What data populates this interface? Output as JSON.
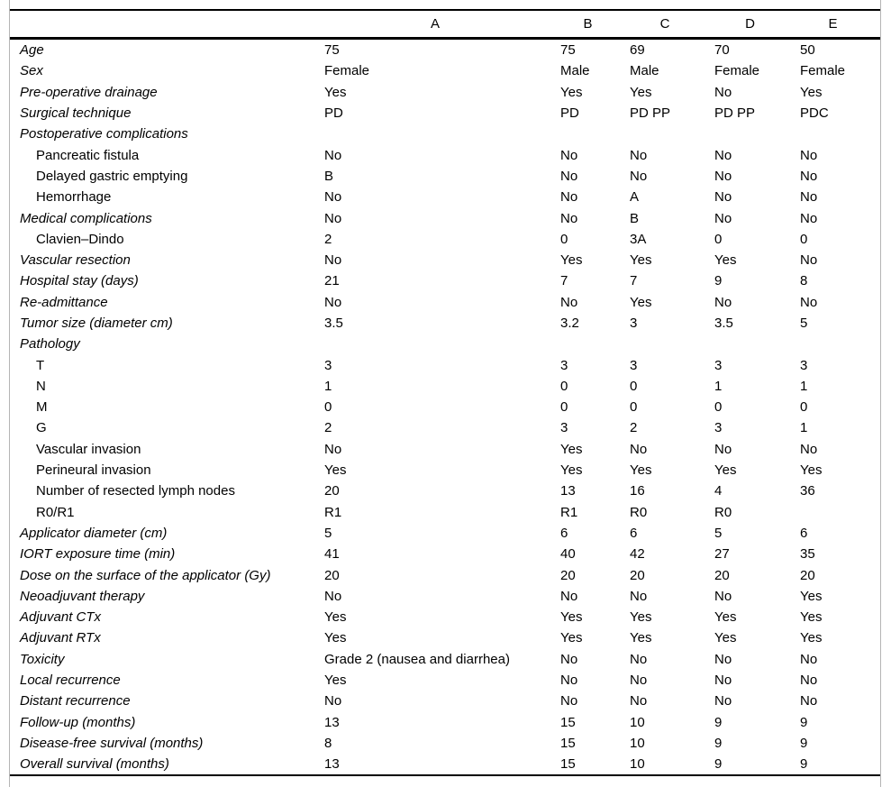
{
  "table": {
    "columns": [
      "A",
      "B",
      "C",
      "D",
      "E"
    ],
    "rows": [
      {
        "label": "Age",
        "style": "main",
        "values": [
          "75",
          "75",
          "69",
          "70",
          "50"
        ]
      },
      {
        "label": "Sex",
        "style": "main",
        "values": [
          "Female",
          "Male",
          "Male",
          "Female",
          "Female"
        ]
      },
      {
        "label": "Pre-operative drainage",
        "style": "main",
        "values": [
          "Yes",
          "Yes",
          "Yes",
          "No",
          "Yes"
        ]
      },
      {
        "label": "Surgical technique",
        "style": "main",
        "values": [
          "PD",
          "PD",
          "PD PP",
          "PD PP",
          "PDC"
        ]
      },
      {
        "label": "Postoperative complications",
        "style": "main",
        "values": [
          "",
          "",
          "",
          "",
          ""
        ]
      },
      {
        "label": "Pancreatic fistula",
        "style": "sub",
        "values": [
          "No",
          "No",
          "No",
          "No",
          "No"
        ]
      },
      {
        "label": "Delayed gastric emptying",
        "style": "sub",
        "values": [
          "B",
          "No",
          "No",
          "No",
          "No"
        ]
      },
      {
        "label": "Hemorrhage",
        "style": "sub",
        "values": [
          "No",
          "No",
          "A",
          "No",
          "No"
        ]
      },
      {
        "label": "Medical complications",
        "style": "main",
        "values": [
          "No",
          "No",
          "B",
          "No",
          "No"
        ]
      },
      {
        "label": "Clavien–Dindo",
        "style": "sub",
        "values": [
          "2",
          "0",
          "3A",
          "0",
          "0"
        ]
      },
      {
        "label": "Vascular resection",
        "style": "main",
        "values": [
          "No",
          "Yes",
          "Yes",
          "Yes",
          "No"
        ]
      },
      {
        "label": "Hospital stay (days)",
        "style": "main",
        "values": [
          "21",
          "7",
          "7",
          "9",
          "8"
        ]
      },
      {
        "label": "Re-admittance",
        "style": "main",
        "values": [
          "No",
          "No",
          "Yes",
          "No",
          "No"
        ]
      },
      {
        "label": "Tumor size (diameter cm)",
        "style": "main",
        "values": [
          "3.5",
          "3.2",
          "3",
          "3.5",
          "5"
        ]
      },
      {
        "label": "Pathology",
        "style": "main",
        "values": [
          "",
          "",
          "",
          "",
          ""
        ]
      },
      {
        "label": "T",
        "style": "sub",
        "values": [
          "3",
          "3",
          "3",
          "3",
          "3"
        ]
      },
      {
        "label": "N",
        "style": "sub",
        "values": [
          "1",
          "0",
          "0",
          "1",
          "1"
        ]
      },
      {
        "label": "M",
        "style": "sub",
        "values": [
          "0",
          "0",
          "0",
          "0",
          "0"
        ]
      },
      {
        "label": "G",
        "style": "sub",
        "values": [
          "2",
          "3",
          "2",
          "3",
          "1"
        ]
      },
      {
        "label": "Vascular invasion",
        "style": "sub",
        "values": [
          "No",
          "Yes",
          "No",
          "No",
          "No"
        ]
      },
      {
        "label": "Perineural invasion",
        "style": "sub",
        "values": [
          "Yes",
          "Yes",
          "Yes",
          "Yes",
          "Yes"
        ]
      },
      {
        "label": "Number of resected lymph nodes",
        "style": "sub",
        "values": [
          "20",
          "13",
          "16",
          "4",
          "36"
        ]
      },
      {
        "label": "R0/R1",
        "style": "sub",
        "values": [
          "R1",
          "R1",
          "R0",
          "R0",
          ""
        ]
      },
      {
        "label": "Applicator diameter (cm)",
        "style": "main",
        "values": [
          "5",
          "6",
          "6",
          "5",
          "6"
        ]
      },
      {
        "label": "IORT exposure time (min)",
        "style": "main",
        "values": [
          "41",
          "40",
          "42",
          "27",
          "35"
        ]
      },
      {
        "label": "Dose on the surface of the applicator (Gy)",
        "style": "main",
        "values": [
          "20",
          "20",
          "20",
          "20",
          "20"
        ]
      },
      {
        "label": "Neoadjuvant therapy",
        "style": "main",
        "values": [
          "No",
          "No",
          "No",
          "No",
          "Yes"
        ]
      },
      {
        "label": "Adjuvant CTx",
        "style": "main",
        "values": [
          "Yes",
          "Yes",
          "Yes",
          "Yes",
          "Yes"
        ]
      },
      {
        "label": "Adjuvant RTx",
        "style": "main",
        "values": [
          "Yes",
          "Yes",
          "Yes",
          "Yes",
          "Yes"
        ]
      },
      {
        "label": "Toxicity",
        "style": "main",
        "values": [
          "Grade 2 (nausea and diarrhea)",
          "No",
          "No",
          "No",
          "No"
        ]
      },
      {
        "label": "Local recurrence",
        "style": "main",
        "values": [
          "Yes",
          "No",
          "No",
          "No",
          "No"
        ]
      },
      {
        "label": "Distant recurrence",
        "style": "main",
        "values": [
          "No",
          "No",
          "No",
          "No",
          "No"
        ]
      },
      {
        "label": "Follow-up (months)",
        "style": "main",
        "values": [
          "13",
          "15",
          "10",
          "9",
          "9"
        ]
      },
      {
        "label": "Disease-free survival (months)",
        "style": "main",
        "values": [
          "8",
          "15",
          "10",
          "9",
          "9"
        ]
      },
      {
        "label": "Overall survival (months)",
        "style": "main",
        "values": [
          "13",
          "15",
          "10",
          "9",
          "9"
        ]
      }
    ]
  }
}
